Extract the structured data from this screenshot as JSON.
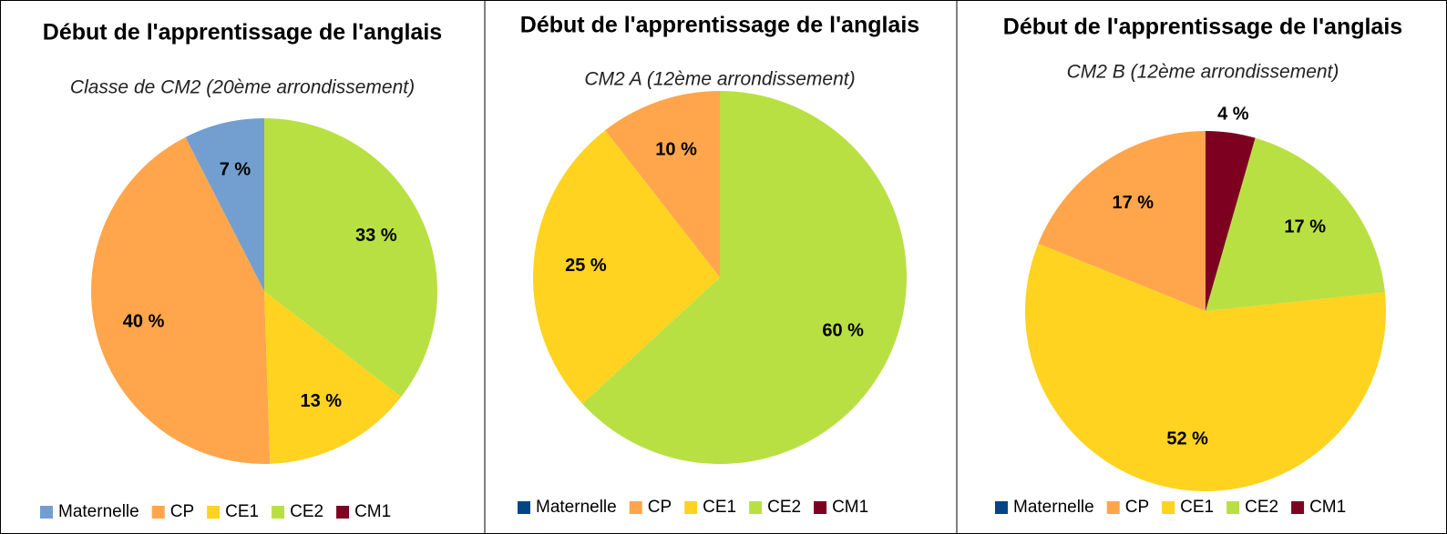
{
  "chart_data": [
    {
      "type": "pie",
      "title": "Début de l'apprentissage de l'anglais",
      "subtitle": "Classe de CM2 (20ème arrondissement)",
      "categories": [
        "Maternelle",
        "CP",
        "CE1",
        "CE2",
        "CM1"
      ],
      "values": [
        7,
        40,
        13,
        33,
        0
      ],
      "value_labels": [
        "7 %",
        "40 %",
        "13 %",
        "33 %",
        null
      ],
      "colors": [
        "#729fcf",
        "#ffa64d",
        "#ffd320",
        "#b9e043",
        "#7e0021"
      ]
    },
    {
      "type": "pie",
      "title": "Début de l'apprentissage de l'anglais",
      "subtitle": "CM2 A (12ème arrondissement)",
      "categories": [
        "Maternelle",
        "CP",
        "CE1",
        "CE2",
        "CM1"
      ],
      "values": [
        0,
        10,
        25,
        60,
        0
      ],
      "value_labels": [
        null,
        "10 %",
        "25 %",
        "60 %",
        null
      ],
      "colors": [
        "#004586",
        "#ffa64d",
        "#ffd320",
        "#b9e043",
        "#7e0021"
      ]
    },
    {
      "type": "pie",
      "title": "Début de l'apprentissage de l'anglais",
      "subtitle": "CM2 B (12ème arrondissement)",
      "categories": [
        "Maternelle",
        "CP",
        "CE1",
        "CE2",
        "CM1"
      ],
      "values": [
        0,
        17,
        52,
        17,
        4
      ],
      "value_labels": [
        null,
        "17 %",
        "52 %",
        "17 %",
        "4 %"
      ],
      "colors": [
        "#004586",
        "#ffa64d",
        "#ffd320",
        "#b9e043",
        "#7e0021"
      ]
    }
  ]
}
